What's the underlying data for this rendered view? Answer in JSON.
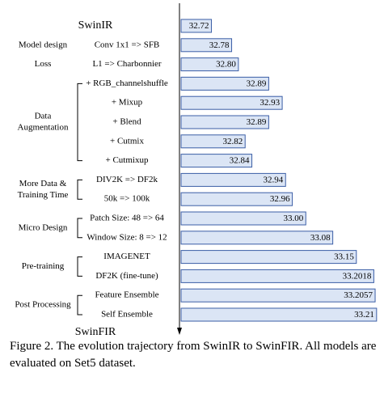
{
  "chart_data": {
    "type": "bar",
    "orientation": "horizontal",
    "start_label": "SwinIR",
    "end_label": "SwinFIR",
    "caption": "Figure 2. The evolution trajectory from SwinIR to SwinFIR. All models are evaluated on Set5 dataset.",
    "color": "#dbe5f5",
    "edge_color": "#3b5ea6",
    "xlim": [
      32.63,
      33.22
    ],
    "groups": [
      {
        "categories": [
          "SwinIR"
        ],
        "values": [
          32.72
        ],
        "value_labels": [
          "32.72"
        ]
      },
      {
        "label": [
          "Model design"
        ],
        "categories": [
          "Conv 1x1 => SFB"
        ],
        "values": [
          32.78
        ],
        "value_labels": [
          "32.78"
        ]
      },
      {
        "label": [
          "Loss"
        ],
        "categories": [
          "L1 => Charbonnier"
        ],
        "values": [
          32.8
        ],
        "value_labels": [
          "32.80"
        ]
      },
      {
        "label": [
          "Data",
          "Augmentation"
        ],
        "categories": [
          "+ RGB_channelshuffle",
          "+ Mixup",
          "+ Blend",
          "+ Cutmix",
          "+ Cutmixup"
        ],
        "values": [
          32.89,
          32.93,
          32.89,
          32.82,
          32.84
        ],
        "value_labels": [
          "32.89",
          "32.93",
          "32.89",
          "32.82",
          "32.84"
        ]
      },
      {
        "label": [
          "More Data &",
          "Training Time"
        ],
        "categories": [
          "DIV2K => DF2k",
          "50k => 100k"
        ],
        "values": [
          32.94,
          32.96
        ],
        "value_labels": [
          "32.94",
          "32.96"
        ]
      },
      {
        "label": [
          "Micro Design"
        ],
        "categories": [
          "Patch Size: 48 => 64",
          "Window Size: 8 => 12"
        ],
        "values": [
          33.0,
          33.08
        ],
        "value_labels": [
          "33.00",
          "33.08"
        ]
      },
      {
        "label": [
          "Pre-training"
        ],
        "categories": [
          "IMAGENET",
          "DF2K (fine-tune)"
        ],
        "values": [
          33.15,
          33.2018
        ],
        "value_labels": [
          "33.15",
          "33.2018"
        ]
      },
      {
        "label": [
          "Post Processing"
        ],
        "categories": [
          "Feature Ensemble",
          "Self Ensemble"
        ],
        "values": [
          33.2057,
          33.21
        ],
        "value_labels": [
          "33.2057",
          "33.21"
        ]
      }
    ]
  }
}
